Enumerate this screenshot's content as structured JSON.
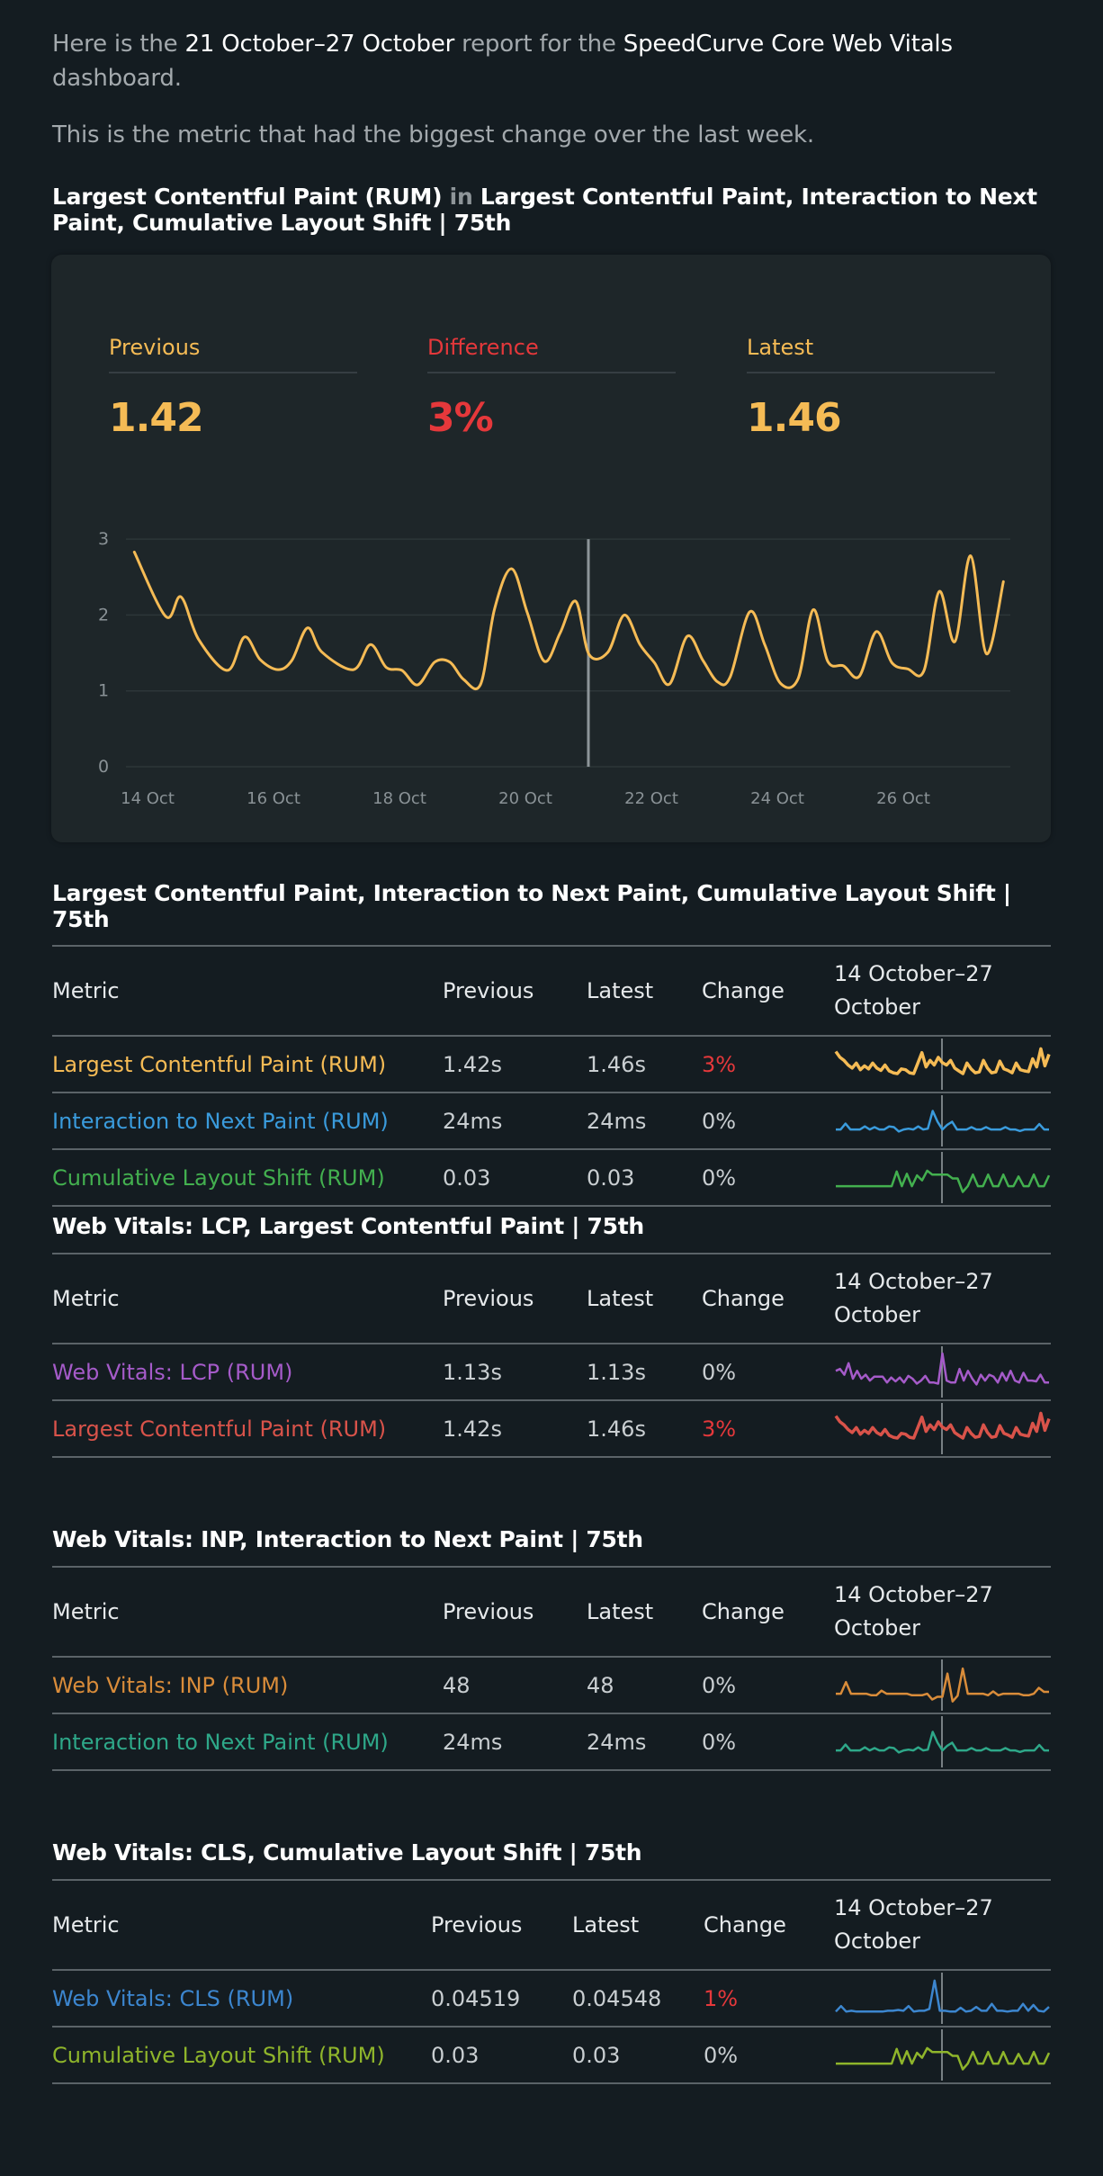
{
  "intro": {
    "p1_a": "Here is the ",
    "p1_range": "21 October–27 October",
    "p1_b": " report for the ",
    "p1_dashboard": "SpeedCurve Core Web Vitals",
    "p1_c": " dashboard.",
    "p2": "This is the metric that had the biggest change over the last week."
  },
  "headline": {
    "metric": "Largest Contentful Paint (RUM)",
    "in": " in ",
    "chart": "Largest Contentful Paint, Interaction to Next Paint, Cumulative Layout Shift | 75th"
  },
  "stats": {
    "previous_label": "Previous",
    "previous_value": "1.42",
    "difference_label": "Difference",
    "difference_value": "3%",
    "latest_label": "Latest",
    "latest_value": "1.46"
  },
  "colors": {
    "accent_yellow": "#f5bb55",
    "change_red": "#e5383b",
    "background": "#141c21",
    "card": "#1e2629"
  },
  "chart_data": {
    "type": "line",
    "title": "",
    "xlabel": "",
    "ylabel": "",
    "ylim": [
      0,
      3
    ],
    "yticks": [
      "0",
      "1",
      "2",
      "3"
    ],
    "xticks": [
      "14 Oct",
      "16 Oct",
      "18 Oct",
      "20 Oct",
      "22 Oct",
      "24 Oct",
      "26 Oct"
    ],
    "xtick_days": [
      0,
      2,
      4,
      6,
      8,
      10,
      12
    ],
    "x_unit": "days since 14 Oct",
    "marker_day": 7.0,
    "grid": true,
    "series": [
      {
        "name": "Largest Contentful Paint (RUM)",
        "color": "#f5bb55",
        "x": [
          -0.21,
          0.29,
          0.53,
          0.81,
          1.27,
          1.54,
          1.79,
          2.07,
          2.29,
          2.54,
          2.77,
          3.27,
          3.54,
          3.79,
          4.04,
          4.29,
          4.56,
          4.8,
          5.02,
          5.29,
          5.51,
          5.78,
          6.03,
          6.3,
          6.55,
          6.8,
          7.01,
          7.31,
          7.57,
          7.82,
          8.05,
          8.29,
          8.57,
          8.82,
          9.05,
          9.25,
          9.56,
          9.8,
          10.05,
          10.33,
          10.57,
          10.8,
          11.05,
          11.3,
          11.57,
          11.82,
          12.07,
          12.33,
          12.57,
          12.82,
          13.07,
          13.32,
          13.59
        ],
        "values": [
          2.83,
          1.98,
          2.24,
          1.68,
          1.27,
          1.71,
          1.41,
          1.28,
          1.4,
          1.83,
          1.51,
          1.28,
          1.61,
          1.31,
          1.27,
          1.08,
          1.38,
          1.38,
          1.15,
          1.09,
          2.08,
          2.61,
          2.03,
          1.39,
          1.76,
          2.18,
          1.48,
          1.51,
          2.0,
          1.61,
          1.37,
          1.09,
          1.72,
          1.4,
          1.12,
          1.18,
          2.04,
          1.61,
          1.1,
          1.16,
          2.07,
          1.39,
          1.33,
          1.19,
          1.78,
          1.37,
          1.29,
          1.27,
          2.31,
          1.65,
          2.78,
          1.49,
          2.44
        ]
      }
    ]
  },
  "tables": [
    {
      "title": "Largest Contentful Paint, Interaction to Next Paint, Cumulative Layout Shift | 75th",
      "headers": {
        "metric": "Metric",
        "previous": "Previous",
        "latest": "Latest",
        "change": "Change",
        "range": "14 October–27 October"
      },
      "rows": [
        {
          "metric": "Largest Contentful Paint (RUM)",
          "color": "#f5bb55",
          "previous": "1.42s",
          "latest": "1.46s",
          "change": "3%",
          "change_up": true,
          "trend": [
            0.85,
            0.7,
            0.62,
            0.5,
            0.42,
            0.55,
            0.38,
            0.48,
            0.4,
            0.55,
            0.42,
            0.36,
            0.5,
            0.35,
            0.3,
            0.28,
            0.4,
            0.38,
            0.3,
            0.28,
            0.55,
            0.82,
            0.45,
            0.62,
            0.5,
            0.7,
            0.56,
            0.5,
            0.62,
            0.42,
            0.35,
            0.28,
            0.55,
            0.4,
            0.3,
            0.32,
            0.62,
            0.42,
            0.3,
            0.32,
            0.6,
            0.4,
            0.36,
            0.3,
            0.55,
            0.38,
            0.35,
            0.33,
            0.66,
            0.45,
            0.92,
            0.48,
            0.78
          ]
        },
        {
          "metric": "Interaction to Next Paint (RUM)",
          "color": "#3a9bdc",
          "previous": "24ms",
          "latest": "24ms",
          "change": "0%",
          "change_up": false,
          "trend": [
            0.3,
            0.3,
            0.45,
            0.3,
            0.3,
            0.3,
            0.38,
            0.3,
            0.36,
            0.3,
            0.3,
            0.38,
            0.36,
            0.25,
            0.3,
            0.32,
            0.3,
            0.38,
            0.3,
            0.32,
            0.78,
            0.5,
            0.3,
            0.42,
            0.5,
            0.3,
            0.3,
            0.3,
            0.36,
            0.3,
            0.3,
            0.36,
            0.3,
            0.3,
            0.3,
            0.36,
            0.3,
            0.3,
            0.26,
            0.3,
            0.3,
            0.3,
            0.44,
            0.3,
            0.3
          ]
        },
        {
          "metric": "Cumulative Layout Shift (RUM)",
          "color": "#43b04f",
          "previous": "0.03",
          "latest": "0.03",
          "change": "0%",
          "change_up": false,
          "trend": [
            0.3,
            0.3,
            0.3,
            0.3,
            0.3,
            0.3,
            0.3,
            0.3,
            0.3,
            0.3,
            0.3,
            0.3,
            0.68,
            0.3,
            0.62,
            0.3,
            0.58,
            0.45,
            0.7,
            0.6,
            0.6,
            0.6,
            0.6,
            0.5,
            0.5,
            0.15,
            0.3,
            0.6,
            0.3,
            0.3,
            0.6,
            0.3,
            0.3,
            0.6,
            0.3,
            0.3,
            0.55,
            0.3,
            0.3,
            0.6,
            0.3,
            0.3,
            0.58
          ]
        }
      ]
    },
    {
      "title": "Web Vitals: LCP, Largest Contentful Paint | 75th",
      "headers": {
        "metric": "Metric",
        "previous": "Previous",
        "latest": "Latest",
        "change": "Change",
        "range": "14 October–27 October"
      },
      "rows": [
        {
          "metric": "Web Vitals: LCP (RUM)",
          "color": "#a55bc9",
          "previous": "1.13s",
          "latest": "1.13s",
          "change": "0%",
          "change_up": false,
          "trend": [
            0.55,
            0.6,
            0.45,
            0.75,
            0.35,
            0.55,
            0.35,
            0.45,
            0.3,
            0.4,
            0.4,
            0.4,
            0.25,
            0.38,
            0.28,
            0.38,
            0.25,
            0.42,
            0.35,
            0.22,
            0.3,
            0.42,
            0.25,
            0.25,
            0.22,
            1.0,
            0.3,
            0.25,
            0.25,
            0.6,
            0.3,
            0.55,
            0.35,
            0.2,
            0.45,
            0.3,
            0.45,
            0.4,
            0.25,
            0.5,
            0.3,
            0.55,
            0.3,
            0.25,
            0.5,
            0.3,
            0.3,
            0.28,
            0.45,
            0.25,
            0.25
          ]
        },
        {
          "metric": "Largest Contentful Paint (RUM)",
          "color": "#d9534a",
          "previous": "1.42s",
          "latest": "1.46s",
          "change": "3%",
          "change_up": true,
          "trend": [
            0.85,
            0.7,
            0.62,
            0.5,
            0.42,
            0.55,
            0.38,
            0.48,
            0.4,
            0.55,
            0.42,
            0.36,
            0.5,
            0.35,
            0.3,
            0.28,
            0.4,
            0.38,
            0.3,
            0.28,
            0.55,
            0.82,
            0.45,
            0.62,
            0.5,
            0.7,
            0.56,
            0.5,
            0.62,
            0.42,
            0.35,
            0.28,
            0.55,
            0.4,
            0.3,
            0.32,
            0.62,
            0.42,
            0.3,
            0.32,
            0.6,
            0.4,
            0.36,
            0.3,
            0.55,
            0.38,
            0.35,
            0.33,
            0.66,
            0.45,
            0.92,
            0.48,
            0.78
          ]
        }
      ]
    },
    {
      "title": "Web Vitals: INP, Interaction to Next Paint | 75th",
      "headers": {
        "metric": "Metric",
        "previous": "Previous",
        "latest": "Latest",
        "change": "Change",
        "range": "14 October–27 October"
      },
      "rows": [
        {
          "metric": "Web Vitals: INP (RUM)",
          "color": "#d98c3a",
          "previous": "48",
          "latest": "48",
          "change": "0%",
          "change_up": false,
          "trend": [
            0.3,
            0.3,
            0.6,
            0.3,
            0.3,
            0.3,
            0.3,
            0.26,
            0.26,
            0.38,
            0.3,
            0.3,
            0.3,
            0.3,
            0.3,
            0.26,
            0.26,
            0.26,
            0.3,
            0.15,
            0.22,
            0.22,
            0.82,
            0.1,
            0.25,
            0.95,
            0.3,
            0.3,
            0.3,
            0.3,
            0.26,
            0.36,
            0.26,
            0.3,
            0.3,
            0.3,
            0.3,
            0.26,
            0.26,
            0.3,
            0.45,
            0.35,
            0.35
          ]
        },
        {
          "metric": "Interaction to Next Paint (RUM)",
          "color": "#2ea889",
          "previous": "24ms",
          "latest": "24ms",
          "change": "0%",
          "change_up": false,
          "trend": [
            0.3,
            0.3,
            0.45,
            0.3,
            0.3,
            0.3,
            0.38,
            0.3,
            0.36,
            0.3,
            0.3,
            0.38,
            0.36,
            0.25,
            0.3,
            0.32,
            0.3,
            0.38,
            0.3,
            0.32,
            0.78,
            0.5,
            0.3,
            0.42,
            0.5,
            0.3,
            0.3,
            0.3,
            0.36,
            0.3,
            0.3,
            0.36,
            0.3,
            0.3,
            0.3,
            0.36,
            0.3,
            0.3,
            0.26,
            0.3,
            0.3,
            0.3,
            0.44,
            0.3,
            0.3
          ]
        }
      ]
    },
    {
      "title": "Web Vitals: CLS, Cumulative Layout Shift | 75th",
      "headers": {
        "metric": "Metric",
        "previous": "Previous",
        "latest": "Latest",
        "change": "Change",
        "range": "14 October–27 October"
      },
      "rows": [
        {
          "metric": "Web Vitals: CLS (RUM)",
          "color": "#3c86cf",
          "previous": "0.04519",
          "latest": "0.04548",
          "change": "1%",
          "change_up": true,
          "trend": [
            0.18,
            0.32,
            0.18,
            0.2,
            0.18,
            0.18,
            0.18,
            0.18,
            0.18,
            0.18,
            0.2,
            0.2,
            0.22,
            0.2,
            0.32,
            0.18,
            0.2,
            0.2,
            0.25,
            0.98,
            0.2,
            0.2,
            0.18,
            0.18,
            0.28,
            0.18,
            0.2,
            0.3,
            0.2,
            0.2,
            0.38,
            0.2,
            0.2,
            0.18,
            0.2,
            0.2,
            0.38,
            0.2,
            0.35,
            0.2,
            0.18,
            0.3
          ]
        },
        {
          "metric": "Cumulative Layout Shift (RUM)",
          "color": "#8fb52b",
          "previous": "0.03",
          "latest": "0.03",
          "change": "0%",
          "change_up": false,
          "trend": [
            0.3,
            0.3,
            0.3,
            0.3,
            0.3,
            0.3,
            0.3,
            0.3,
            0.3,
            0.3,
            0.3,
            0.3,
            0.68,
            0.3,
            0.62,
            0.3,
            0.58,
            0.45,
            0.7,
            0.6,
            0.6,
            0.6,
            0.6,
            0.5,
            0.5,
            0.15,
            0.3,
            0.6,
            0.3,
            0.3,
            0.6,
            0.3,
            0.3,
            0.6,
            0.3,
            0.3,
            0.55,
            0.3,
            0.3,
            0.6,
            0.3,
            0.3,
            0.58
          ]
        }
      ]
    }
  ]
}
